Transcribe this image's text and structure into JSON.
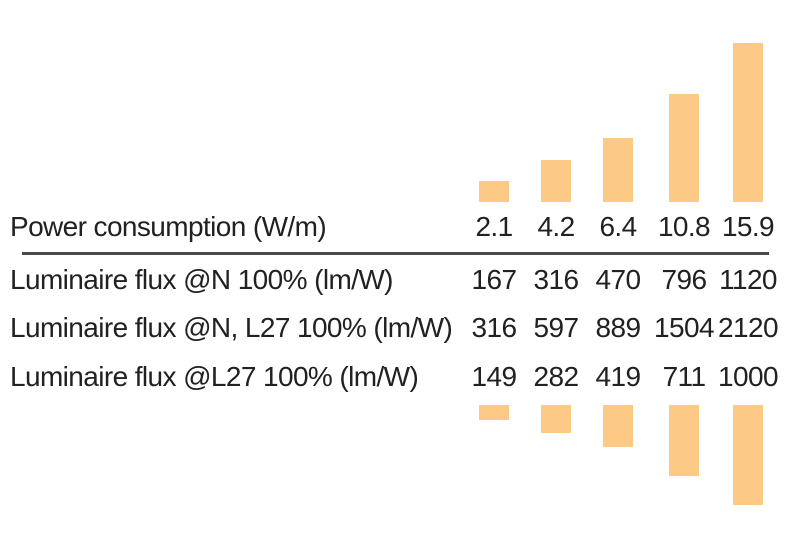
{
  "colors": {
    "bar": "#fdca86",
    "text": "#232021",
    "rule": "#4a4a4a",
    "background": "#ffffff"
  },
  "chart_data": {
    "type": "bar",
    "title": "",
    "categories": [
      "2.1",
      "4.2",
      "6.4",
      "10.8",
      "15.9"
    ],
    "legend": "none",
    "grid": false,
    "bar_color": "#fdca86",
    "layout_hints": {
      "top_bars_series": "Power consumption (W/m)",
      "top_bars_direction": "up",
      "bottom_bars_series": "Luminaire flux @L27 100% (lm/W)",
      "bottom_bars_direction": "down",
      "axes_hidden": true
    },
    "series": [
      {
        "name": "Power consumption (W/m)",
        "values": [
          2.1,
          4.2,
          6.4,
          10.8,
          15.9
        ]
      },
      {
        "name": "Luminaire flux @N 100% (lm/W)",
        "values": [
          167,
          316,
          470,
          796,
          1120
        ]
      },
      {
        "name": "Luminaire flux @N, L27 100% (lm/W)",
        "values": [
          316,
          597,
          889,
          1504,
          2120
        ]
      },
      {
        "name": "Luminaire flux @L27 100% (lm/W)",
        "values": [
          149,
          282,
          419,
          711,
          1000
        ]
      }
    ]
  }
}
